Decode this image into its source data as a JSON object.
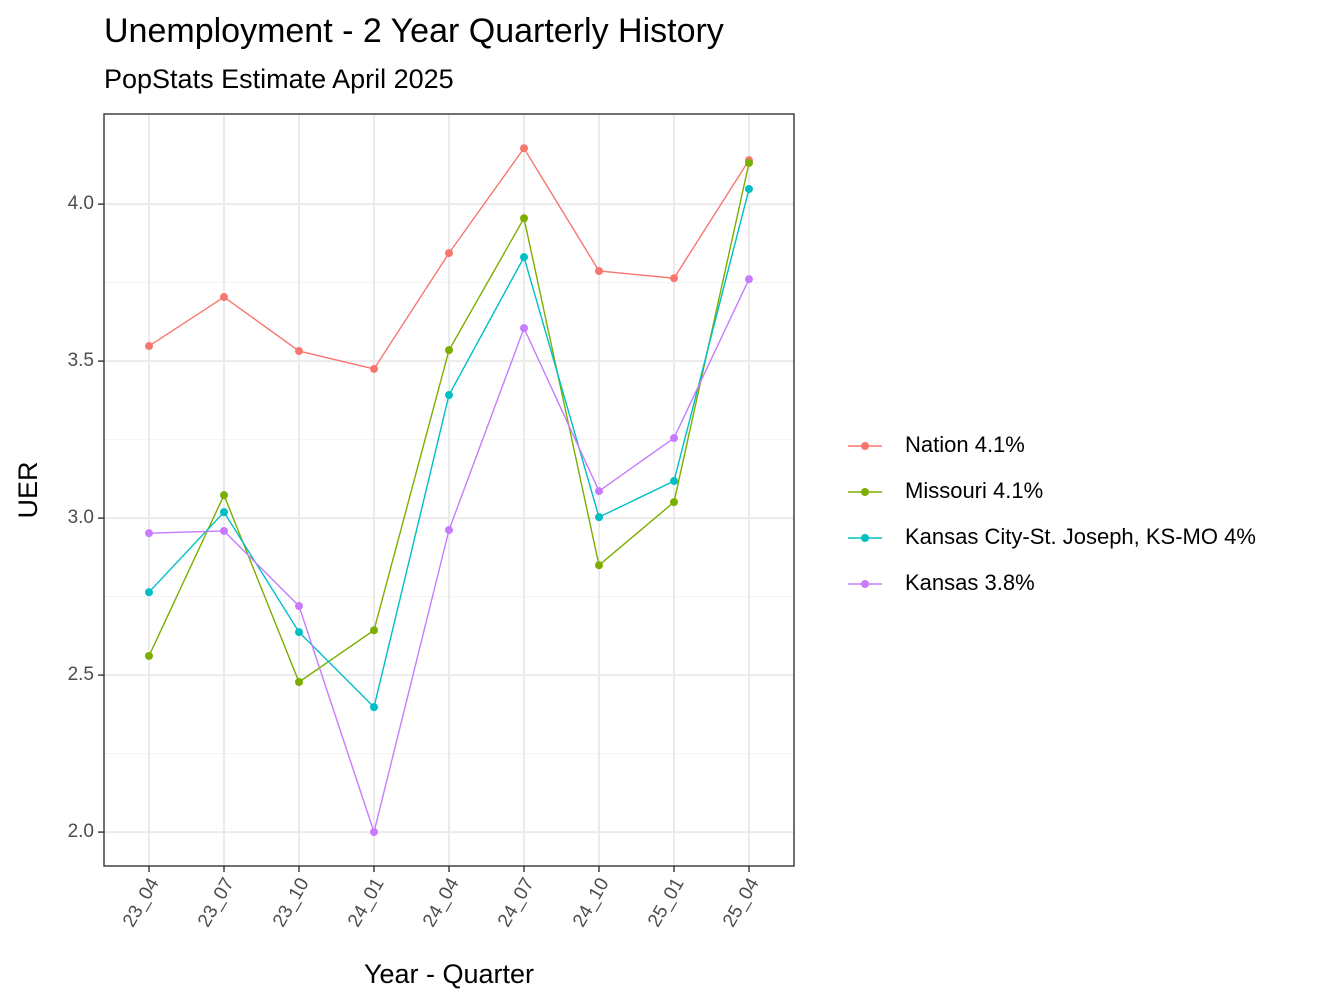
{
  "chart_data": {
    "type": "line",
    "title": "Unemployment - 2 Year Quarterly History",
    "subtitle": "PopStats Estimate April 2025",
    "x_label": "Year - Quarter",
    "y_label": "UER",
    "categories": [
      "23_04",
      "23_07",
      "23_10",
      "24_01",
      "24_04",
      "24_07",
      "24_10",
      "25_01",
      "25_04"
    ],
    "series": [
      {
        "name": "Nation 4.1%",
        "color": "#F8766D",
        "values": [
          3.548,
          3.704,
          3.532,
          3.475,
          3.844,
          4.178,
          3.787,
          3.764,
          4.14
        ]
      },
      {
        "name": "Missouri 4.1%",
        "color": "#7CAE00",
        "values": [
          2.561,
          3.073,
          2.478,
          2.643,
          3.535,
          3.955,
          2.85,
          3.051,
          4.131
        ]
      },
      {
        "name": "Kansas City-St. Joseph, KS-MO 4%",
        "color": "#00BFC4",
        "values": [
          2.764,
          3.019,
          2.637,
          2.398,
          3.392,
          3.831,
          3.003,
          3.118,
          4.048
        ]
      },
      {
        "name": "Kansas 3.8%",
        "color": "#C77CFF",
        "values": [
          2.952,
          2.959,
          2.72,
          2.0,
          2.962,
          3.605,
          3.086,
          3.255,
          3.761
        ]
      }
    ],
    "ylim": [
      1.892,
      4.287
    ],
    "yticks": [
      {
        "value": 2,
        "label": "2.0"
      },
      2.5,
      {
        "value": 3,
        "label": "3.0"
      },
      3.5,
      {
        "value": 4,
        "label": "4.0"
      }
    ],
    "grid": true,
    "legend_position": "right"
  }
}
